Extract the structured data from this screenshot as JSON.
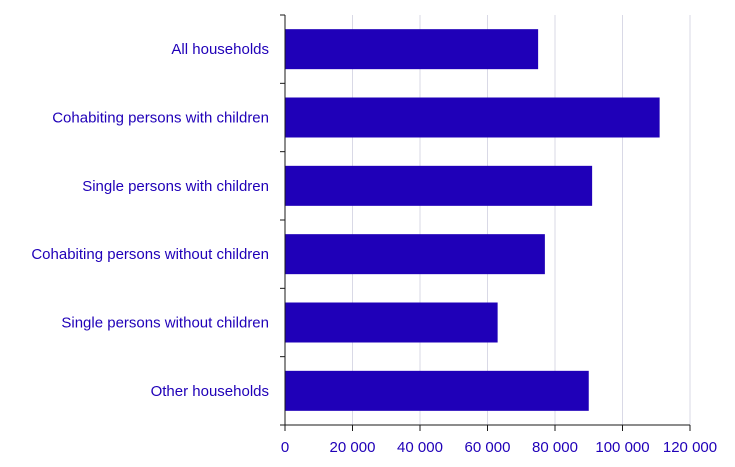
{
  "colors": {
    "bar": "#1f00b8",
    "text": "#1f00b8",
    "axis": "#1a1a1a",
    "grid": "#d9d9e6"
  },
  "chart_data": {
    "type": "bar",
    "orientation": "horizontal",
    "categories": [
      "All households",
      "Cohabiting persons with children",
      "Single persons with children",
      "Cohabiting persons without children",
      "Single persons without children",
      "Other households"
    ],
    "values": [
      75000,
      111000,
      91000,
      77000,
      63000,
      90000
    ],
    "xlim": [
      0,
      120000
    ],
    "xticks": [
      0,
      20000,
      40000,
      60000,
      80000,
      100000,
      120000
    ],
    "xtick_labels": [
      "0",
      "20 000",
      "40 000",
      "60 000",
      "80 000",
      "100 000",
      "120 000"
    ],
    "grid": "vertical",
    "legend": "none"
  }
}
